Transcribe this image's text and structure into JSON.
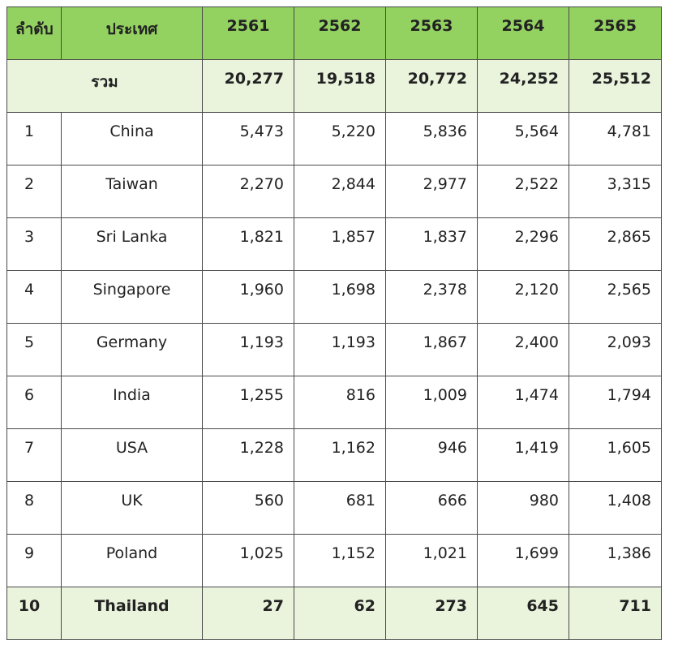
{
  "headers": [
    "ลำดับ",
    "ประเทศ",
    "2561",
    "2562",
    "2563",
    "2564",
    "2565"
  ],
  "total": {
    "label": "รวม",
    "values": [
      "20,277",
      "19,518",
      "20,772",
      "24,252",
      "25,512"
    ]
  },
  "rows": [
    {
      "rank": "1",
      "country": "China",
      "values": [
        "5,473",
        "5,220",
        "5,836",
        "5,564",
        "4,781"
      ]
    },
    {
      "rank": "2",
      "country": "Taiwan",
      "values": [
        "2,270",
        "2,844",
        "2,977",
        "2,522",
        "3,315"
      ]
    },
    {
      "rank": "3",
      "country": "Sri Lanka",
      "values": [
        "1,821",
        "1,857",
        "1,837",
        "2,296",
        "2,865"
      ]
    },
    {
      "rank": "4",
      "country": "Singapore",
      "values": [
        "1,960",
        "1,698",
        "2,378",
        "2,120",
        "2,565"
      ]
    },
    {
      "rank": "5",
      "country": "Germany",
      "values": [
        "1,193",
        "1,193",
        "1,867",
        "2,400",
        "2,093"
      ]
    },
    {
      "rank": "6",
      "country": "India",
      "values": [
        "1,255",
        "816",
        "1,009",
        "1,474",
        "1,794"
      ]
    },
    {
      "rank": "7",
      "country": "USA",
      "values": [
        "1,228",
        "1,162",
        "946",
        "1,419",
        "1,605"
      ]
    },
    {
      "rank": "8",
      "country": "UK",
      "values": [
        "560",
        "681",
        "666",
        "980",
        "1,408"
      ]
    },
    {
      "rank": "9",
      "country": "Poland",
      "values": [
        "1,025",
        "1,152",
        "1,021",
        "1,699",
        "1,386"
      ]
    },
    {
      "rank": "10",
      "country": "Thailand",
      "values": [
        "27",
        "62",
        "273",
        "645",
        "711"
      ]
    }
  ],
  "colors": {
    "header_bg": "#93d161",
    "highlight_bg": "#eaf3dc"
  }
}
